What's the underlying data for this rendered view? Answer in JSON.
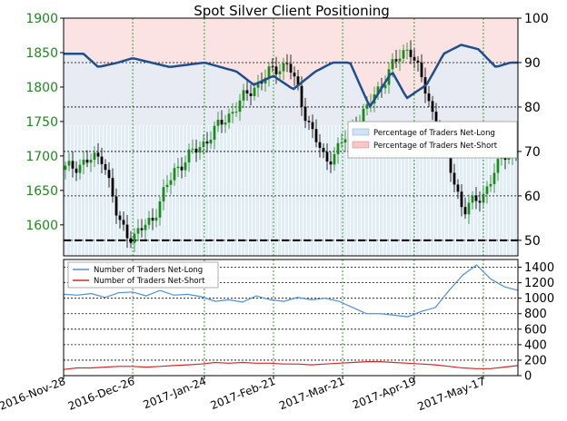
{
  "chart_data": [
    {
      "type": "candlestick",
      "title": "Spot Silver Client Positioning",
      "y_left_ticks": [
        1600,
        1650,
        1700,
        1750,
        1800,
        1850,
        1900
      ],
      "y_left_range": [
        1555,
        1900
      ],
      "y_right_ticks": [
        50,
        60,
        70,
        80,
        90,
        100
      ],
      "y_right_range": [
        46.5,
        100
      ],
      "x_labels": [
        "2016-Nov-28",
        "2016-Dec-26",
        "2017-Jan-24",
        "2017-Feb-21",
        "2017-Mar-21",
        "2017-Apr-19",
        "2017-May-17"
      ],
      "reference_line": 50,
      "legend": [
        {
          "label": "Percentage of Traders Net-Long",
          "color": "#cfe2f7"
        },
        {
          "label": "Percentage of Traders Net-Short",
          "color": "#f7c6c6"
        }
      ],
      "price_series": [
        {
          "x": "2016-Nov-28",
          "y": 1680
        },
        {
          "x": "2016-Dec-06",
          "y": 1690
        },
        {
          "x": "2016-Dec-14",
          "y": 1700
        },
        {
          "x": "2016-Dec-20",
          "y": 1605
        },
        {
          "x": "2016-Dec-26",
          "y": 1580
        },
        {
          "x": "2017-Jan-03",
          "y": 1610
        },
        {
          "x": "2017-Jan-12",
          "y": 1680
        },
        {
          "x": "2017-Jan-24",
          "y": 1720
        },
        {
          "x": "2017-Feb-03",
          "y": 1760
        },
        {
          "x": "2017-Feb-13",
          "y": 1800
        },
        {
          "x": "2017-Feb-21",
          "y": 1825
        },
        {
          "x": "2017-Feb-27",
          "y": 1835
        },
        {
          "x": "2017-Mar-06",
          "y": 1760
        },
        {
          "x": "2017-Mar-14",
          "y": 1690
        },
        {
          "x": "2017-Mar-21",
          "y": 1720
        },
        {
          "x": "2017-Mar-31",
          "y": 1770
        },
        {
          "x": "2017-Apr-10",
          "y": 1830
        },
        {
          "x": "2017-Apr-17",
          "y": 1860
        },
        {
          "x": "2017-Apr-24",
          "y": 1790
        },
        {
          "x": "2017-May-02",
          "y": 1700
        },
        {
          "x": "2017-May-09",
          "y": 1620
        },
        {
          "x": "2017-May-17",
          "y": 1645
        },
        {
          "x": "2017-May-26",
          "y": 1705
        }
      ],
      "net_long_pct": [
        {
          "x": "2016-Nov-28",
          "y": 92
        },
        {
          "x": "2016-Dec-06",
          "y": 92
        },
        {
          "x": "2016-Dec-12",
          "y": 89
        },
        {
          "x": "2016-Dec-20",
          "y": 90
        },
        {
          "x": "2016-Dec-26",
          "y": 91
        },
        {
          "x": "2017-Jan-10",
          "y": 89
        },
        {
          "x": "2017-Jan-24",
          "y": 90
        },
        {
          "x": "2017-Feb-06",
          "y": 88
        },
        {
          "x": "2017-Feb-13",
          "y": 85
        },
        {
          "x": "2017-Feb-21",
          "y": 87
        },
        {
          "x": "2017-Mar-01",
          "y": 84
        },
        {
          "x": "2017-Mar-10",
          "y": 88
        },
        {
          "x": "2017-Mar-17",
          "y": 90
        },
        {
          "x": "2017-Mar-24",
          "y": 90
        },
        {
          "x": "2017-Apr-01",
          "y": 80
        },
        {
          "x": "2017-Apr-10",
          "y": 88
        },
        {
          "x": "2017-Apr-16",
          "y": 82
        },
        {
          "x": "2017-Apr-24",
          "y": 85
        },
        {
          "x": "2017-May-01",
          "y": 92
        },
        {
          "x": "2017-May-08",
          "y": 94
        },
        {
          "x": "2017-May-15",
          "y": 93
        },
        {
          "x": "2017-May-22",
          "y": 89
        },
        {
          "x": "2017-May-28",
          "y": 90
        }
      ]
    },
    {
      "type": "line",
      "y_ticks": [
        0,
        200,
        400,
        600,
        800,
        1000,
        1200,
        1400
      ],
      "y_range": [
        0,
        1500
      ],
      "series": [
        {
          "name": "Number of Traders Net-Long",
          "color": "#4a90d9",
          "values": [
            1050,
            1040,
            1060,
            1010,
            1070,
            1080,
            1030,
            1100,
            1040,
            1050,
            1020,
            960,
            980,
            950,
            1030,
            980,
            960,
            1010,
            980,
            1000,
            960,
            880,
            800,
            800,
            780,
            760,
            830,
            880,
            1100,
            1300,
            1430,
            1250,
            1150,
            1100
          ]
        },
        {
          "name": "Number of Traders Net-Short",
          "color": "#d62728",
          "values": [
            80,
            100,
            100,
            110,
            120,
            120,
            110,
            120,
            130,
            140,
            150,
            170,
            160,
            170,
            160,
            160,
            150,
            150,
            140,
            150,
            160,
            170,
            180,
            180,
            170,
            160,
            150,
            140,
            120,
            100,
            90,
            90,
            110,
            130
          ]
        }
      ]
    }
  ]
}
